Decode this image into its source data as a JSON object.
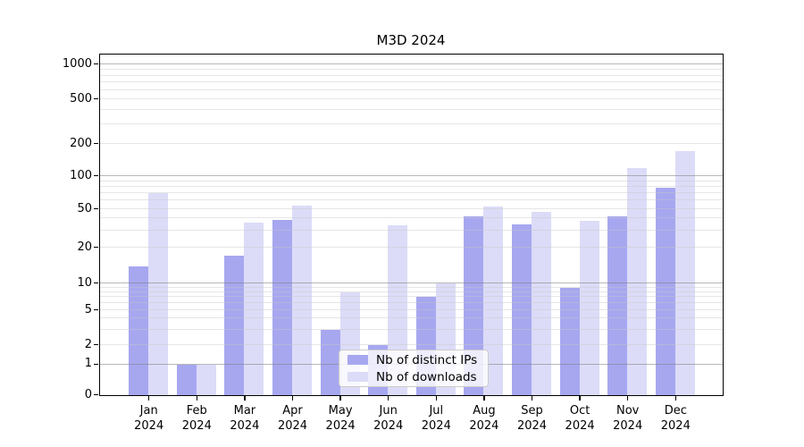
{
  "chart_data": {
    "type": "bar",
    "title": "M3D 2024",
    "categories": [
      "Jan",
      "Feb",
      "Mar",
      "Apr",
      "May",
      "Jun",
      "Jul",
      "Aug",
      "Sep",
      "Oct",
      "Nov",
      "Dec"
    ],
    "year_label": "2024",
    "series": [
      {
        "name": "Nb of distinct IPs",
        "color": "#a7a7f0",
        "values": [
          14,
          1,
          17,
          39,
          3,
          2,
          7,
          42,
          35,
          9,
          42,
          78
        ]
      },
      {
        "name": "Nb of downloads",
        "color": "#dcdcf8",
        "values": [
          70,
          1,
          36,
          54,
          8,
          34,
          10,
          53,
          47,
          38,
          120,
          170
        ]
      }
    ],
    "yscale": "symlog",
    "yticks": [
      0,
      1,
      2,
      5,
      10,
      20,
      50,
      100,
      200,
      500,
      1000
    ],
    "ylim": [
      0,
      1000
    ],
    "grid": "on",
    "legend_position": "lower center"
  }
}
